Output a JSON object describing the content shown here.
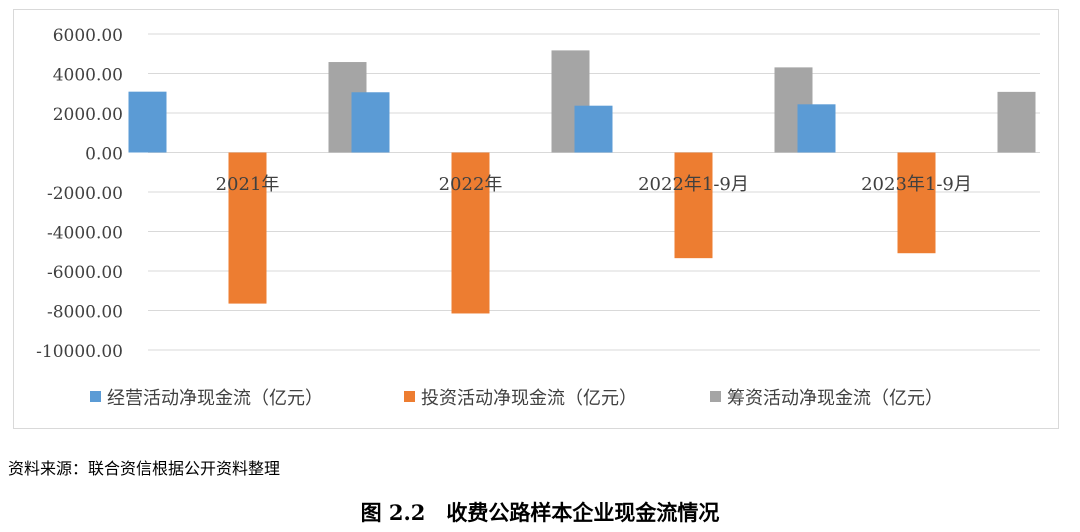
{
  "chart_data": {
    "type": "bar",
    "categories": [
      "2021年",
      "2022年",
      "2022年1-9月",
      "2023年1-9月"
    ],
    "series": [
      {
        "name": "经营活动净现金流（亿元）",
        "values": [
          3080,
          3050,
          2370,
          2440
        ],
        "color": "#5b9bd5"
      },
      {
        "name": "投资活动净现金流（亿元）",
        "values": [
          -7650,
          -8150,
          -5350,
          -5100
        ],
        "color": "#ed7d31"
      },
      {
        "name": "筹资活动净现金流（亿元）",
        "values": [
          4580,
          5170,
          4310,
          3070
        ],
        "color": "#a5a5a5"
      }
    ],
    "ylim": [
      -10000,
      6000
    ],
    "yticks": [
      6000,
      4000,
      2000,
      0,
      -2000,
      -4000,
      -6000,
      -8000,
      -10000
    ],
    "ytick_labels": [
      "6000.00",
      "4000.00",
      "2000.00",
      "0.00",
      "-2000.00",
      "-4000.00",
      "-6000.00",
      "-8000.00",
      "-10000.00"
    ],
    "grid": true,
    "legend_position": "bottom"
  },
  "source_note": "资料来源：联合资信根据公开资料整理",
  "figure_caption": "图 2.2　收费公路样本企业现金流情况"
}
